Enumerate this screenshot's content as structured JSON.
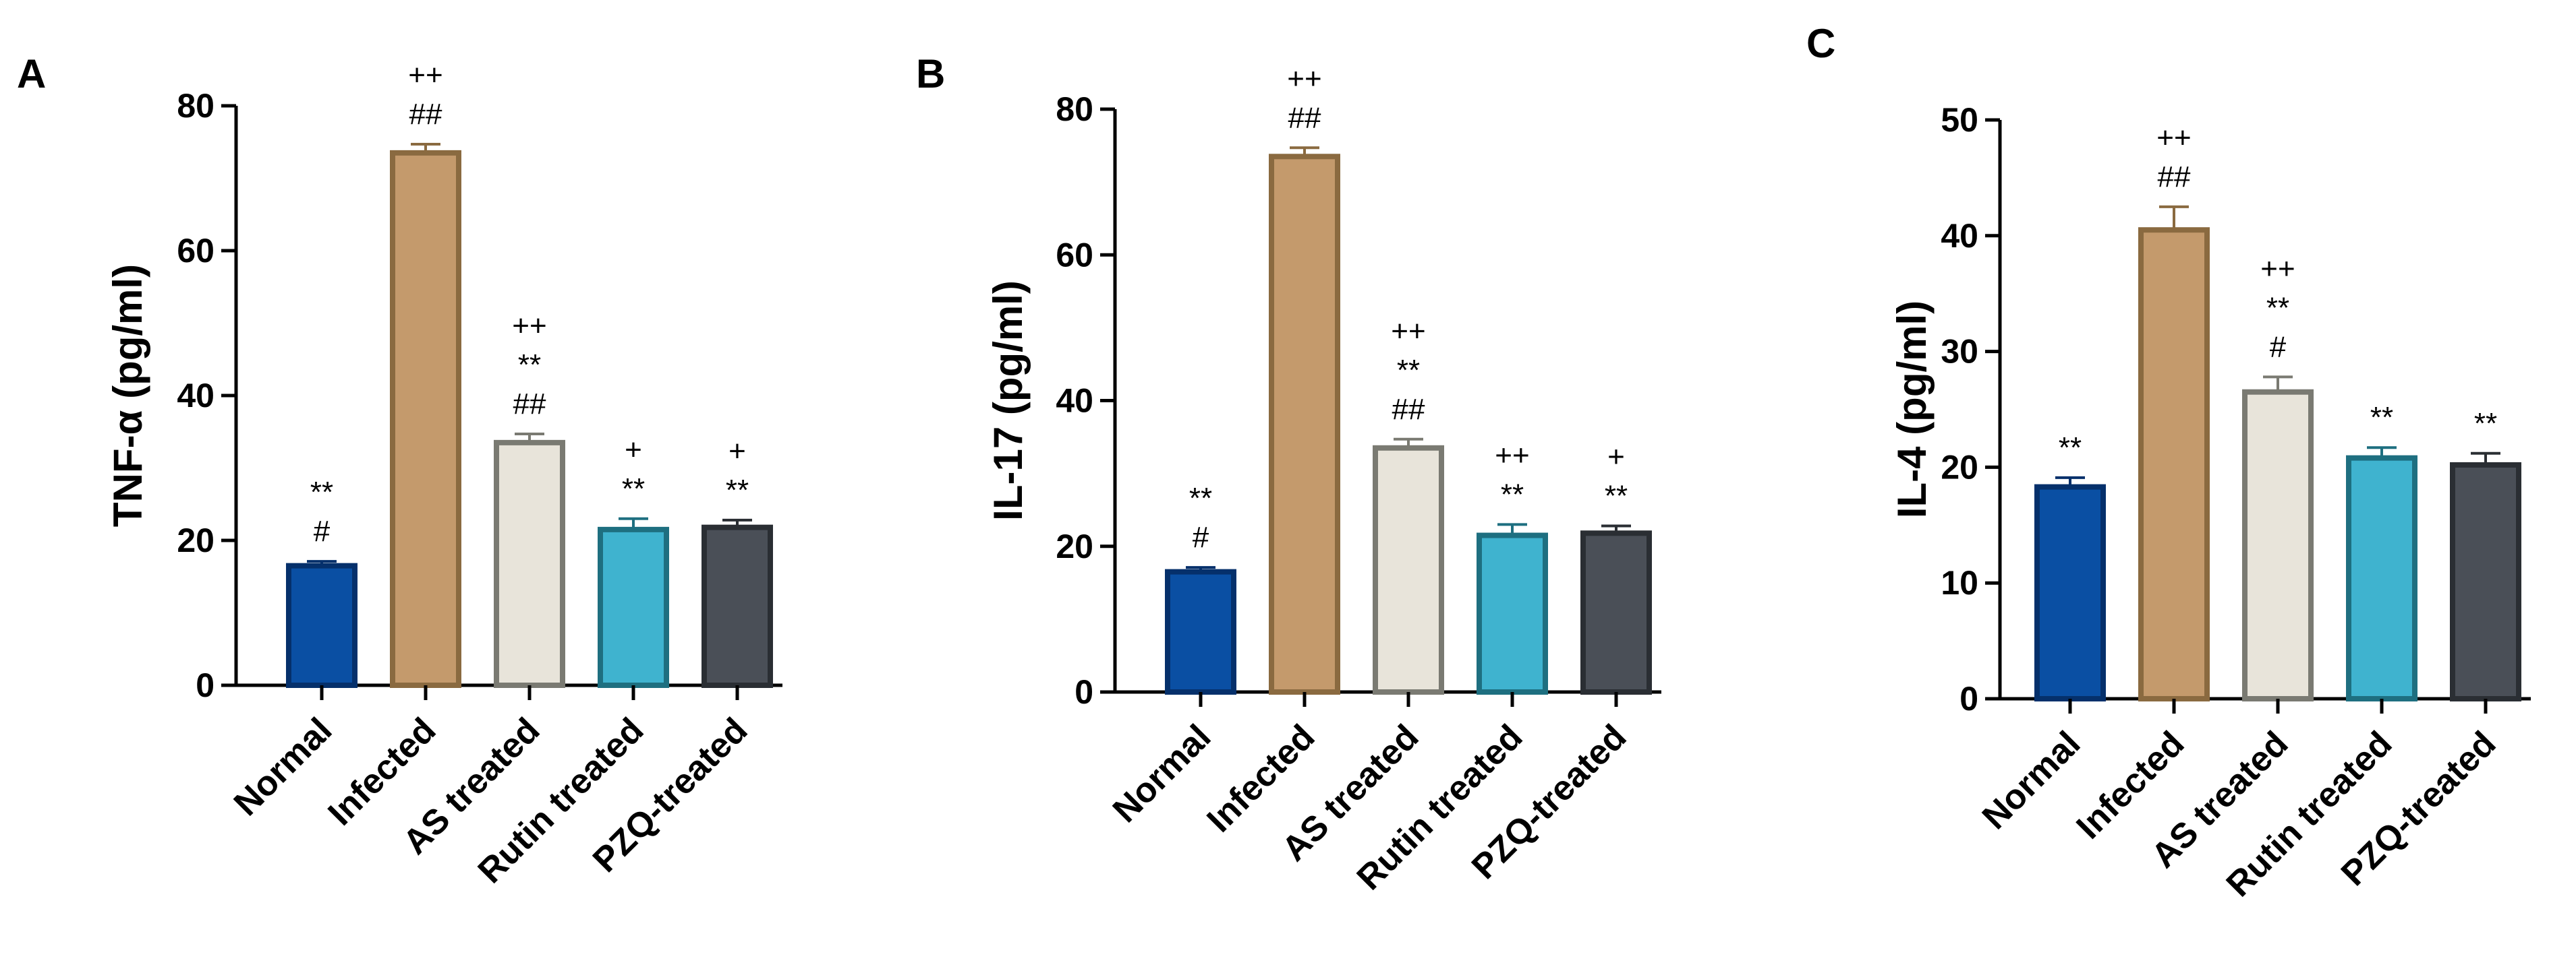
{
  "chart_data": [
    {
      "type": "bar",
      "panel_label": "A",
      "ylabel": "TNF-α (pg/ml)",
      "ylim": [
        0,
        80
      ],
      "yticks": [
        "0",
        "20",
        "40",
        "60",
        "80"
      ],
      "categories": [
        "Normal",
        "Infected",
        "AS treated",
        "Rutin treated",
        "PZQ-treated"
      ],
      "values": [
        16.5,
        73.5,
        33.5,
        21.5,
        21.8
      ],
      "errors": [
        0.6,
        1.2,
        1.2,
        1.5,
        1.0
      ],
      "fill_colors": [
        "#0a4fa3",
        "#c49a6c",
        "#e8e4da",
        "#3fb3cf",
        "#4a4f57"
      ],
      "edge_colors": [
        "#05306b",
        "#8a6a40",
        "#7a7a72",
        "#1e6f80",
        "#2a2e33"
      ],
      "annotations": [
        [
          "**",
          "#"
        ],
        [
          "++",
          "##"
        ],
        [
          "++",
          "**",
          "##"
        ],
        [
          "+",
          "**"
        ],
        [
          "+",
          "**"
        ]
      ]
    },
    {
      "type": "bar",
      "panel_label": "B",
      "ylabel": "IL-17  (pg/ml)",
      "ylim": [
        0,
        80
      ],
      "yticks": [
        "0",
        "20",
        "40",
        "60",
        "80"
      ],
      "categories": [
        "Normal",
        "Infected",
        "AS treated",
        "Rutin treated",
        "PZQ-treated"
      ],
      "values": [
        16.5,
        73.5,
        33.5,
        21.5,
        21.8
      ],
      "errors": [
        0.6,
        1.2,
        1.2,
        1.5,
        1.0
      ],
      "fill_colors": [
        "#0a4fa3",
        "#c49a6c",
        "#e8e4da",
        "#3fb3cf",
        "#4a4f57"
      ],
      "edge_colors": [
        "#05306b",
        "#8a6a40",
        "#7a7a72",
        "#1e6f80",
        "#2a2e33"
      ],
      "annotations": [
        [
          "**",
          "#"
        ],
        [
          "++",
          "##"
        ],
        [
          "++",
          "**",
          "##"
        ],
        [
          "++",
          "**"
        ],
        [
          "+",
          "**"
        ]
      ]
    },
    {
      "type": "bar",
      "panel_label": "C",
      "ylabel": "IL-4 (pg/ml)",
      "ylim": [
        0,
        50
      ],
      "yticks": [
        "0",
        "10",
        "20",
        "30",
        "40",
        "50"
      ],
      "categories": [
        "Normal",
        "Infected",
        "AS treated",
        "Rutin treated",
        "PZQ-treated"
      ],
      "values": [
        18.3,
        40.5,
        26.5,
        20.8,
        20.2
      ],
      "errors": [
        0.8,
        2.0,
        1.3,
        0.9,
        1.0
      ],
      "fill_colors": [
        "#0a4fa3",
        "#c49a6c",
        "#e8e4da",
        "#3fb3cf",
        "#4a4f57"
      ],
      "edge_colors": [
        "#05306b",
        "#8a6a40",
        "#7a7a72",
        "#1e6f80",
        "#2a2e33"
      ],
      "annotations": [
        [
          "**"
        ],
        [
          "++",
          "##"
        ],
        [
          "++",
          "**",
          "#"
        ],
        [
          "**"
        ],
        [
          "**"
        ]
      ]
    }
  ]
}
